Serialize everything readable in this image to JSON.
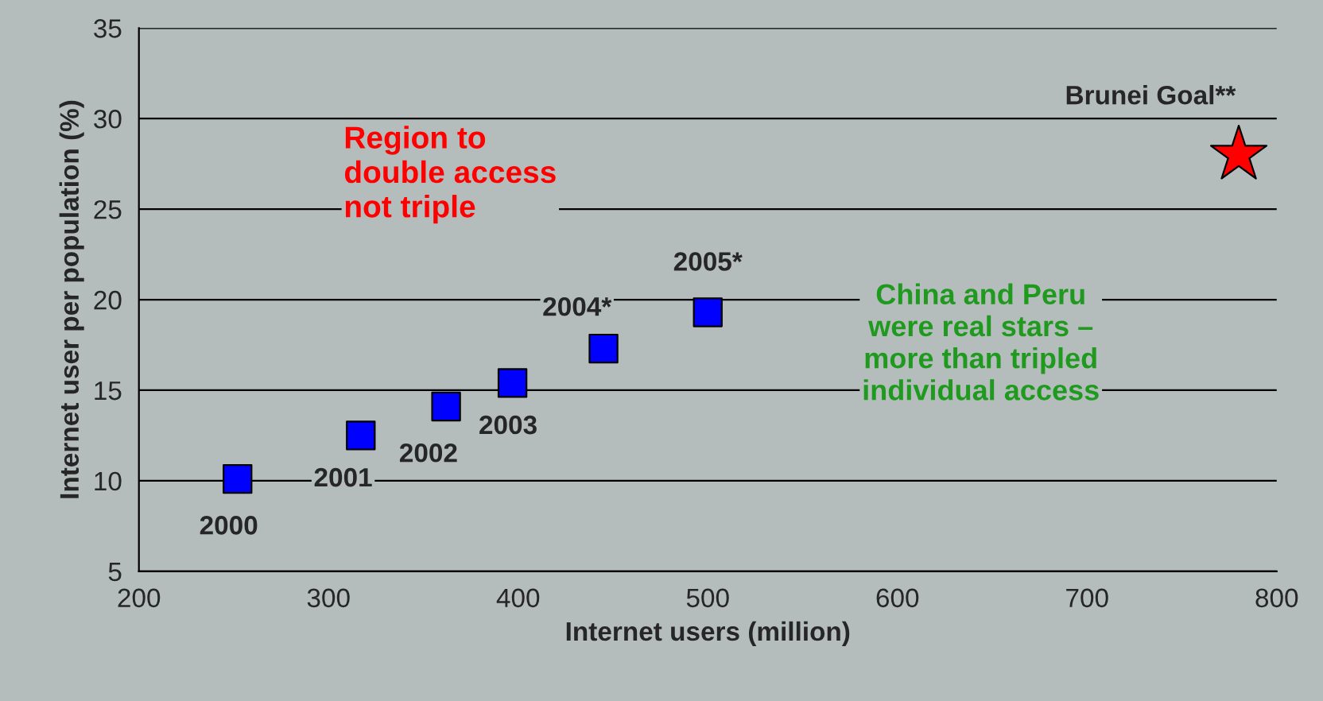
{
  "chart_data": {
    "type": "scatter",
    "xlabel": "Internet users (million)",
    "ylabel": "Internet user per population (%)",
    "xlim": [
      200,
      800
    ],
    "xticks": [
      200,
      300,
      400,
      500,
      600,
      700,
      800
    ],
    "ylim": [
      5,
      35
    ],
    "yticks": [
      5,
      10,
      15,
      20,
      25,
      30,
      35
    ],
    "grid": "y",
    "series": [
      {
        "color": "#0000ff",
        "marker": "square",
        "x": [
          252,
          317,
          362,
          397,
          445,
          500
        ],
        "values": [
          10.1,
          12.5,
          14.1,
          15.4,
          17.3,
          19.3
        ]
      },
      {
        "color": "#ff0000",
        "marker": "star",
        "x": [
          780
        ],
        "values": [
          28
        ]
      }
    ],
    "annotations": [
      {
        "text": "2000",
        "x": 252,
        "y": 10.1
      },
      {
        "text": "2001",
        "x": 317,
        "y": 12.5
      },
      {
        "text": "2002",
        "x": 362,
        "y": 14.1
      },
      {
        "text": "2003",
        "x": 397,
        "y": 15.4
      },
      {
        "text": "2004*",
        "x": 445,
        "y": 17.3
      },
      {
        "text": "2005*",
        "x": 500,
        "y": 19.3
      },
      {
        "text": "Brunei Goal**",
        "x": 780,
        "y": 28
      },
      "Region to\ndouble access\nnot triple",
      "China and Peru\nwere real stars –\nmore than tripled\nindividual access"
    ]
  }
}
